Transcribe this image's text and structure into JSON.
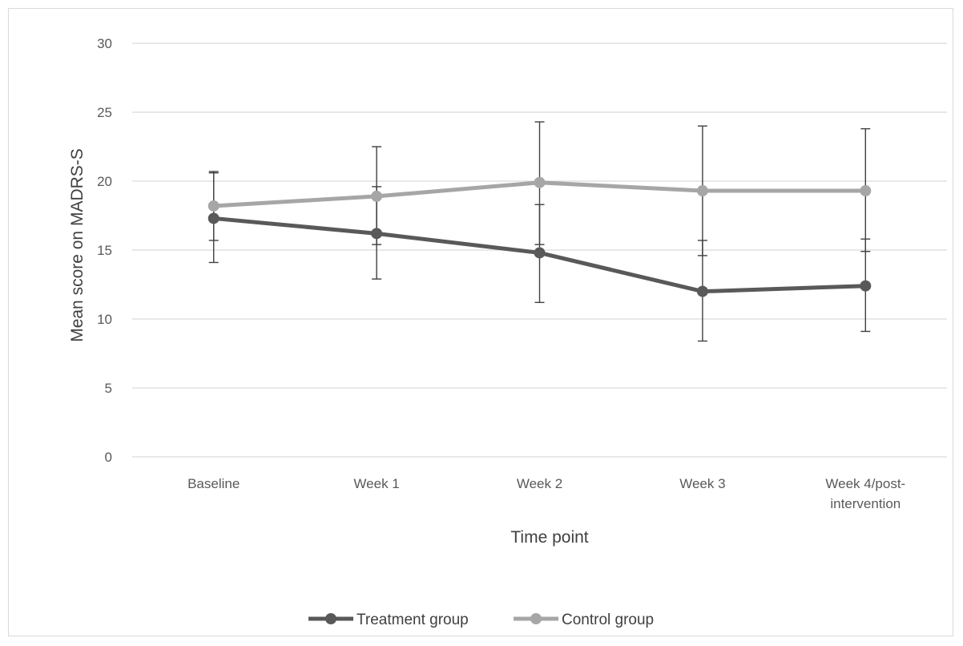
{
  "chart_data": {
    "type": "line",
    "categories": [
      "Baseline",
      "Week 1",
      "Week 2",
      "Week 3",
      "Week 4/post-intervention"
    ],
    "category_lines": [
      [
        "Baseline"
      ],
      [
        "Week 1"
      ],
      [
        "Week 2"
      ],
      [
        "Week 3"
      ],
      [
        "Week 4/post-",
        "intervention"
      ]
    ],
    "xlabel": "Time point",
    "ylabel": "Mean score on MADRS-S",
    "ylim": [
      0,
      30
    ],
    "yticks": [
      0,
      5,
      10,
      15,
      20,
      25,
      30
    ],
    "grid": true,
    "legend_position": "bottom",
    "series": [
      {
        "name": "Treatment group",
        "color": "#595959",
        "values": [
          17.3,
          16.2,
          14.8,
          12.0,
          12.4
        ],
        "error_low": [
          14.1,
          12.9,
          11.2,
          8.4,
          9.1
        ],
        "error_high": [
          20.6,
          19.6,
          18.3,
          15.7,
          15.8
        ]
      },
      {
        "name": "Control group",
        "color": "#a6a6a6",
        "values": [
          18.2,
          18.9,
          19.9,
          19.3,
          19.3
        ],
        "error_low": [
          15.7,
          15.4,
          15.4,
          14.6,
          14.9
        ],
        "error_high": [
          20.7,
          22.5,
          24.3,
          24.0,
          23.8
        ]
      }
    ]
  }
}
